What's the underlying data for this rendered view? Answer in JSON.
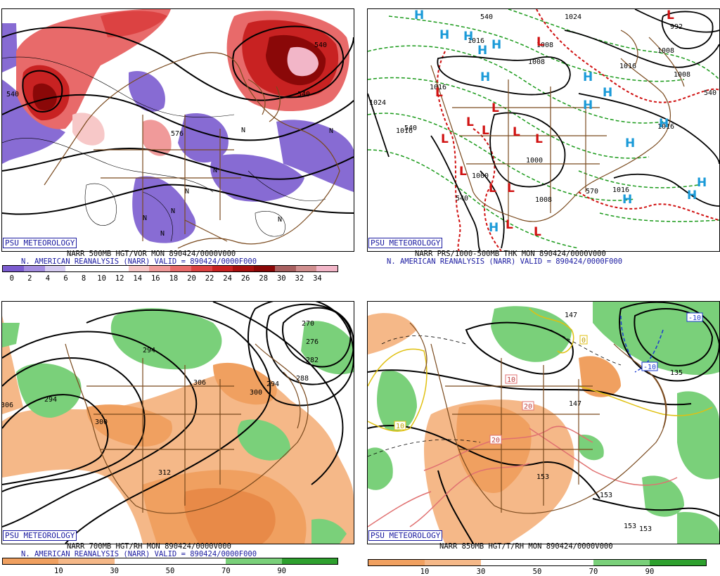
{
  "panels": {
    "p1": {
      "badge": "PSU METEOROLOGY",
      "title_line1": "NARR 500MB HGT/VOR MON 890424/0000V000",
      "title_line2": "N. AMERICAN REANALYSIS (NARR) VALID = 890424/0000F000",
      "contour_labels": [
        "540",
        "564",
        "576",
        "576"
      ],
      "vort_markers": [
        "N",
        "N",
        "N",
        "N",
        "N",
        "N",
        "N",
        "N"
      ],
      "colorbar": {
        "colors": [
          "#7b5ccf",
          "#a48de0",
          "#d7cdf2",
          "#ffffff",
          "#ffffff",
          "#ffffff",
          "#f7c8c8",
          "#f09a9a",
          "#e86a6a",
          "#dc4242",
          "#c82222",
          "#a81010",
          "#8a0808",
          "#a86060",
          "#d08f8f",
          "#f2b6c8"
        ],
        "ticks": [
          "0",
          "2",
          "4",
          "6",
          "8",
          "10",
          "12",
          "14",
          "16",
          "18",
          "20",
          "22",
          "24",
          "26",
          "28",
          "30",
          "32",
          "34"
        ]
      }
    },
    "p2": {
      "badge": "PSU METEOROLOGY",
      "title_line1": "NARR PRS/1000-500MB THK MON 890424/0000V000",
      "title_line2": "N. AMERICAN REANALYSIS (NARR) VALID = 890424/0000F000",
      "contour_labels": [
        "1024",
        "1008",
        "1008",
        "1016",
        "1016",
        "1008",
        "1000",
        "1008",
        "1016",
        "1016",
        "1016",
        "1024",
        "1016",
        "1000",
        "1008",
        "992"
      ],
      "thickness_labels": [
        "540",
        "540",
        "540",
        "540",
        "570"
      ],
      "high_label": "H",
      "low_label": "L"
    },
    "p3": {
      "badge": "PSU METEOROLOGY",
      "title_line1": "NARR 700MB HGT/RH MON 890424/0000V000",
      "title_line2": "N. AMERICAN REANALYSIS (NARR) VALID = 890424/0000F000",
      "contour_labels": [
        "294",
        "294",
        "300",
        "306",
        "306",
        "312",
        "270",
        "276",
        "282",
        "288",
        "294",
        "300"
      ],
      "colorbar": {
        "colors": [
          "#f0a060",
          "#f5b888",
          "#ffffff",
          "#ffffff",
          "#7ad07a",
          "#2ea02e"
        ],
        "ticks": [
          "10",
          "30",
          "50",
          "70",
          "90"
        ]
      }
    },
    "p4": {
      "badge": "PSU METEOROLOGY",
      "title_line1": "NARR 850MB HGT/T/RH MON 890424/0000V000",
      "contour_labels": [
        "147",
        "147",
        "135",
        "153",
        "153",
        "153",
        "153"
      ],
      "isotherm_labels": [
        "0",
        "10",
        "10",
        "20",
        "20",
        "-10",
        "-10"
      ],
      "colorbar": {
        "colors": [
          "#f0a060",
          "#f5b888",
          "#ffffff",
          "#ffffff",
          "#7ad07a",
          "#2ea02e"
        ],
        "ticks": [
          "10",
          "30",
          "50",
          "70",
          "90"
        ]
      }
    }
  }
}
